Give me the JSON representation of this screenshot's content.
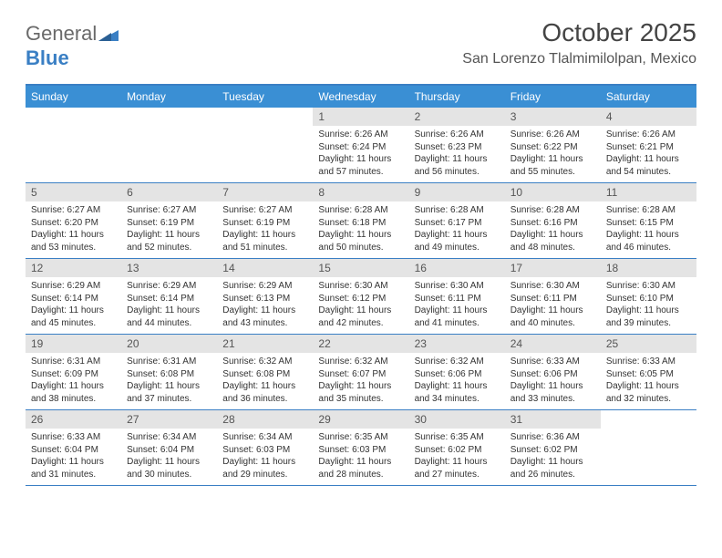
{
  "logo": {
    "text1": "General",
    "text2": "Blue"
  },
  "title": "October 2025",
  "location": "San Lorenzo Tlalmimilolpan, Mexico",
  "colors": {
    "header_bg": "#3a8fd4",
    "border": "#3a7fc4",
    "daynum_bg": "#e4e4e4"
  },
  "day_names": [
    "Sunday",
    "Monday",
    "Tuesday",
    "Wednesday",
    "Thursday",
    "Friday",
    "Saturday"
  ],
  "weeks": [
    [
      null,
      null,
      null,
      {
        "n": "1",
        "sr": "6:26 AM",
        "ss": "6:24 PM",
        "dl": "11 hours and 57 minutes."
      },
      {
        "n": "2",
        "sr": "6:26 AM",
        "ss": "6:23 PM",
        "dl": "11 hours and 56 minutes."
      },
      {
        "n": "3",
        "sr": "6:26 AM",
        "ss": "6:22 PM",
        "dl": "11 hours and 55 minutes."
      },
      {
        "n": "4",
        "sr": "6:26 AM",
        "ss": "6:21 PM",
        "dl": "11 hours and 54 minutes."
      }
    ],
    [
      {
        "n": "5",
        "sr": "6:27 AM",
        "ss": "6:20 PM",
        "dl": "11 hours and 53 minutes."
      },
      {
        "n": "6",
        "sr": "6:27 AM",
        "ss": "6:19 PM",
        "dl": "11 hours and 52 minutes."
      },
      {
        "n": "7",
        "sr": "6:27 AM",
        "ss": "6:19 PM",
        "dl": "11 hours and 51 minutes."
      },
      {
        "n": "8",
        "sr": "6:28 AM",
        "ss": "6:18 PM",
        "dl": "11 hours and 50 minutes."
      },
      {
        "n": "9",
        "sr": "6:28 AM",
        "ss": "6:17 PM",
        "dl": "11 hours and 49 minutes."
      },
      {
        "n": "10",
        "sr": "6:28 AM",
        "ss": "6:16 PM",
        "dl": "11 hours and 48 minutes."
      },
      {
        "n": "11",
        "sr": "6:28 AM",
        "ss": "6:15 PM",
        "dl": "11 hours and 46 minutes."
      }
    ],
    [
      {
        "n": "12",
        "sr": "6:29 AM",
        "ss": "6:14 PM",
        "dl": "11 hours and 45 minutes."
      },
      {
        "n": "13",
        "sr": "6:29 AM",
        "ss": "6:14 PM",
        "dl": "11 hours and 44 minutes."
      },
      {
        "n": "14",
        "sr": "6:29 AM",
        "ss": "6:13 PM",
        "dl": "11 hours and 43 minutes."
      },
      {
        "n": "15",
        "sr": "6:30 AM",
        "ss": "6:12 PM",
        "dl": "11 hours and 42 minutes."
      },
      {
        "n": "16",
        "sr": "6:30 AM",
        "ss": "6:11 PM",
        "dl": "11 hours and 41 minutes."
      },
      {
        "n": "17",
        "sr": "6:30 AM",
        "ss": "6:11 PM",
        "dl": "11 hours and 40 minutes."
      },
      {
        "n": "18",
        "sr": "6:30 AM",
        "ss": "6:10 PM",
        "dl": "11 hours and 39 minutes."
      }
    ],
    [
      {
        "n": "19",
        "sr": "6:31 AM",
        "ss": "6:09 PM",
        "dl": "11 hours and 38 minutes."
      },
      {
        "n": "20",
        "sr": "6:31 AM",
        "ss": "6:08 PM",
        "dl": "11 hours and 37 minutes."
      },
      {
        "n": "21",
        "sr": "6:32 AM",
        "ss": "6:08 PM",
        "dl": "11 hours and 36 minutes."
      },
      {
        "n": "22",
        "sr": "6:32 AM",
        "ss": "6:07 PM",
        "dl": "11 hours and 35 minutes."
      },
      {
        "n": "23",
        "sr": "6:32 AM",
        "ss": "6:06 PM",
        "dl": "11 hours and 34 minutes."
      },
      {
        "n": "24",
        "sr": "6:33 AM",
        "ss": "6:06 PM",
        "dl": "11 hours and 33 minutes."
      },
      {
        "n": "25",
        "sr": "6:33 AM",
        "ss": "6:05 PM",
        "dl": "11 hours and 32 minutes."
      }
    ],
    [
      {
        "n": "26",
        "sr": "6:33 AM",
        "ss": "6:04 PM",
        "dl": "11 hours and 31 minutes."
      },
      {
        "n": "27",
        "sr": "6:34 AM",
        "ss": "6:04 PM",
        "dl": "11 hours and 30 minutes."
      },
      {
        "n": "28",
        "sr": "6:34 AM",
        "ss": "6:03 PM",
        "dl": "11 hours and 29 minutes."
      },
      {
        "n": "29",
        "sr": "6:35 AM",
        "ss": "6:03 PM",
        "dl": "11 hours and 28 minutes."
      },
      {
        "n": "30",
        "sr": "6:35 AM",
        "ss": "6:02 PM",
        "dl": "11 hours and 27 minutes."
      },
      {
        "n": "31",
        "sr": "6:36 AM",
        "ss": "6:02 PM",
        "dl": "11 hours and 26 minutes."
      },
      null
    ]
  ],
  "labels": {
    "sunrise": "Sunrise: ",
    "sunset": "Sunset: ",
    "daylight": "Daylight: "
  }
}
